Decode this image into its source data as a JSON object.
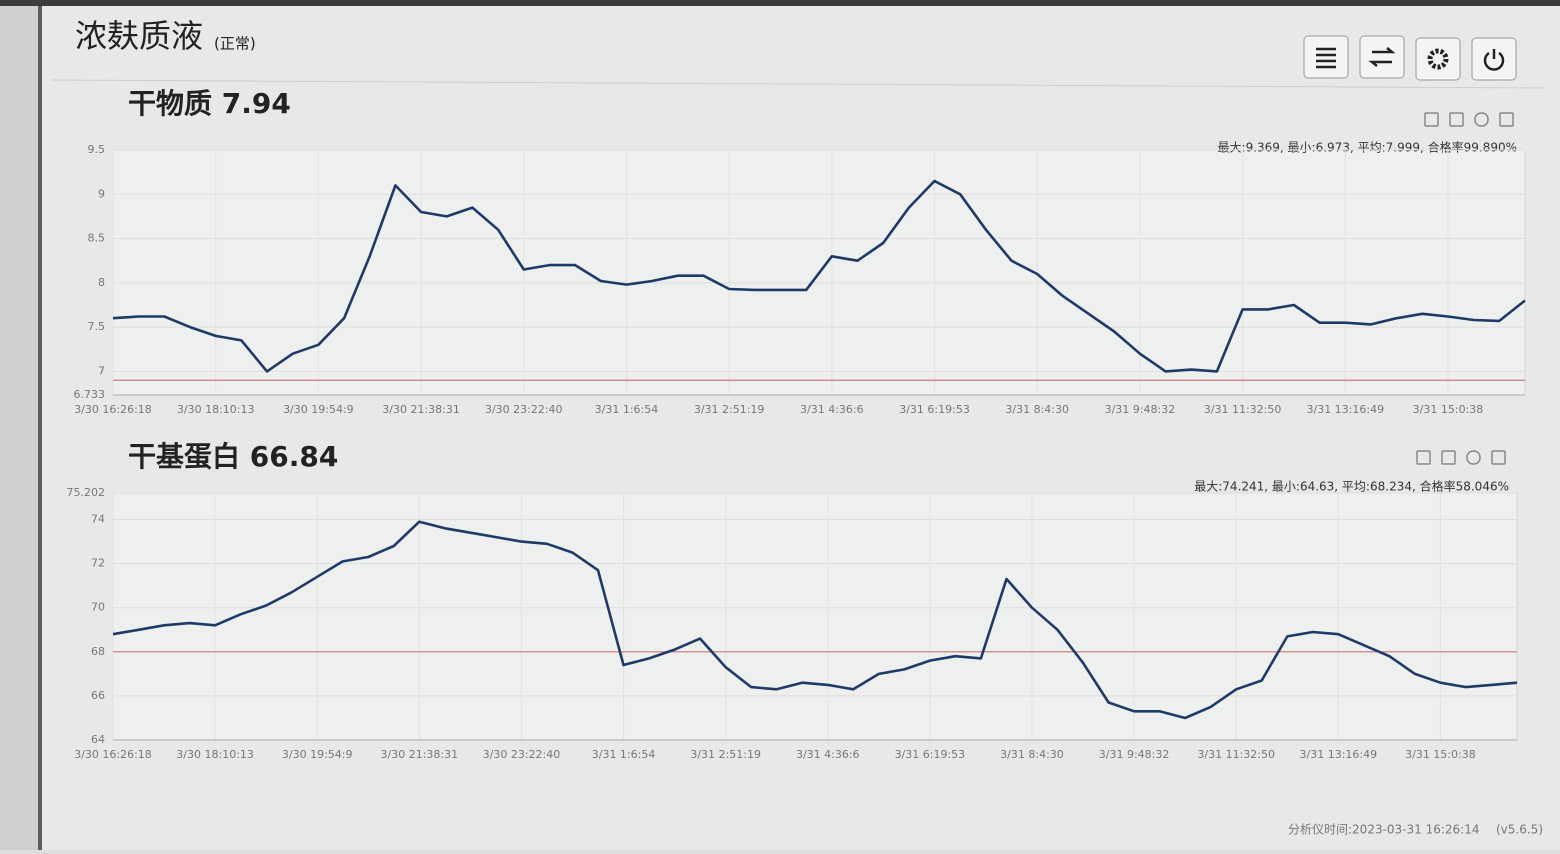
{
  "header": {
    "title": "浓麸质液",
    "status": "(正常)"
  },
  "chart_data": [
    {
      "type": "line",
      "title": "干物质 7.94",
      "annotation": "最大:9.369, 最小:6.973, 平均:7.999, 合格率99.890%",
      "categories": [
        "3/30 16:26:18",
        null,
        null,
        null,
        "3/30 18:10:13",
        null,
        null,
        null,
        "3/30 19:54:9",
        null,
        null,
        null,
        "3/30 21:38:31",
        null,
        null,
        null,
        "3/30 23:22:40",
        null,
        null,
        null,
        "3/31 1:6:54",
        null,
        null,
        null,
        "3/31 2:51:19",
        null,
        null,
        null,
        "3/31 4:36:6",
        null,
        null,
        null,
        "3/31 6:19:53",
        null,
        null,
        null,
        "3/31 8:4:30",
        null,
        null,
        null,
        "3/31 9:48:32",
        null,
        null,
        null,
        "3/31 11:32:50",
        null,
        null,
        null,
        "3/31 13:16:49",
        null,
        null,
        null,
        "3/31 15:0:38",
        null,
        null,
        null
      ],
      "values": [
        7.6,
        7.62,
        7.62,
        7.5,
        7.4,
        7.35,
        7.0,
        7.2,
        7.3,
        7.6,
        8.3,
        9.1,
        8.8,
        8.75,
        8.85,
        8.6,
        8.15,
        8.2,
        8.2,
        8.02,
        7.98,
        8.02,
        8.08,
        8.08,
        7.93,
        7.92,
        7.92,
        7.92,
        8.3,
        8.25,
        8.45,
        8.85,
        9.15,
        9.0,
        8.6,
        8.25,
        8.1,
        7.85,
        7.65,
        7.45,
        7.2,
        7.0,
        7.02,
        7.0,
        7.7,
        7.7,
        7.75,
        7.55,
        7.55,
        7.53,
        7.6,
        7.65,
        7.62,
        7.58,
        7.57,
        7.8
      ],
      "color": "#1f3a66",
      "ylim": [
        6.733,
        9.5
      ],
      "yticks": [
        6.733,
        7,
        7.5,
        8,
        8.5,
        9,
        9.5
      ],
      "limit_line": {
        "value": 6.9,
        "color": "#c87a7a"
      },
      "grid": true
    },
    {
      "type": "line",
      "title": "干基蛋白 66.84",
      "annotation": "最大:74.241, 最小:64.63, 平均:68.234, 合格率58.046%",
      "categories": [
        "3/30 16:26:18",
        null,
        null,
        null,
        "3/30 18:10:13",
        null,
        null,
        null,
        "3/30 19:54:9",
        null,
        null,
        null,
        "3/30 21:38:31",
        null,
        null,
        null,
        "3/30 23:22:40",
        null,
        null,
        null,
        "3/31 1:6:54",
        null,
        null,
        null,
        "3/31 2:51:19",
        null,
        null,
        null,
        "3/31 4:36:6",
        null,
        null,
        null,
        "3/31 6:19:53",
        null,
        null,
        null,
        "3/31 8:4:30",
        null,
        null,
        null,
        "3/31 9:48:32",
        null,
        null,
        null,
        "3/31 11:32:50",
        null,
        null,
        null,
        "3/31 13:16:49",
        null,
        null,
        null,
        "3/31 15:0:38",
        null,
        null,
        null
      ],
      "values": [
        68.8,
        69.0,
        69.2,
        69.3,
        69.2,
        69.7,
        70.1,
        70.7,
        71.4,
        72.1,
        72.3,
        72.8,
        73.9,
        73.6,
        73.4,
        73.2,
        73.0,
        72.9,
        72.5,
        71.7,
        67.4,
        67.7,
        68.1,
        68.6,
        67.3,
        66.4,
        66.3,
        66.6,
        66.5,
        66.3,
        67.0,
        67.2,
        67.6,
        67.8,
        67.7,
        71.3,
        70.0,
        69.0,
        67.5,
        65.7,
        65.3,
        65.3,
        65.0,
        65.5,
        66.3,
        66.7,
        68.7,
        68.9,
        68.8,
        68.3,
        67.8,
        67.0,
        66.6,
        66.4,
        66.5,
        66.6
      ],
      "color": "#1f3a66",
      "ylim": [
        64,
        75.202
      ],
      "yticks": [
        64,
        66,
        68,
        70,
        72,
        74,
        75.202
      ],
      "limit_line": {
        "value": 68,
        "color": "#c87a7a"
      },
      "grid": true
    }
  ],
  "footer": {
    "time": "分析仪时间:2023-03-31 16:26:14",
    "version": "(v5.6.5)"
  }
}
